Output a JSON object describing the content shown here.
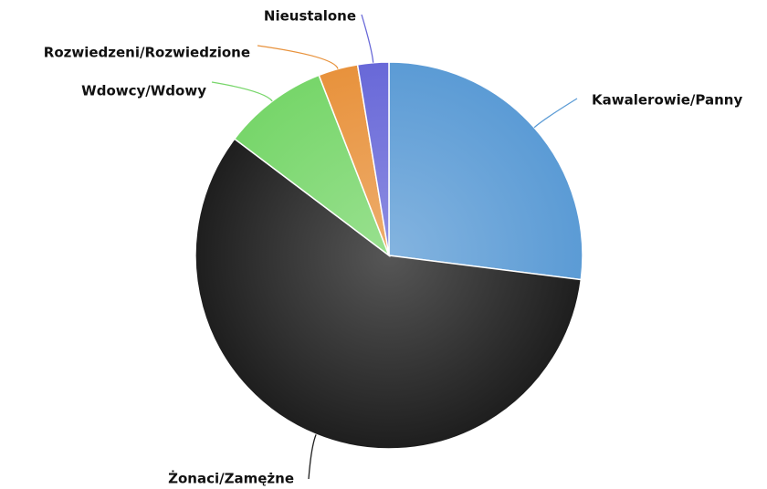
{
  "chart_data": {
    "type": "pie",
    "categories": [
      "Kawalerowie/Panny",
      "Żonaci/Zamężne",
      "Wdowcy/Wdowy",
      "Rozwiedzeni/Rozwiedzione",
      "Nieustalone"
    ],
    "values": [
      27.0,
      58.3,
      8.8,
      3.3,
      2.6
    ],
    "colors": [
      "#5b9bd5",
      "#1e1e1e",
      "#77d66a",
      "#e8923c",
      "#6868d8"
    ]
  }
}
